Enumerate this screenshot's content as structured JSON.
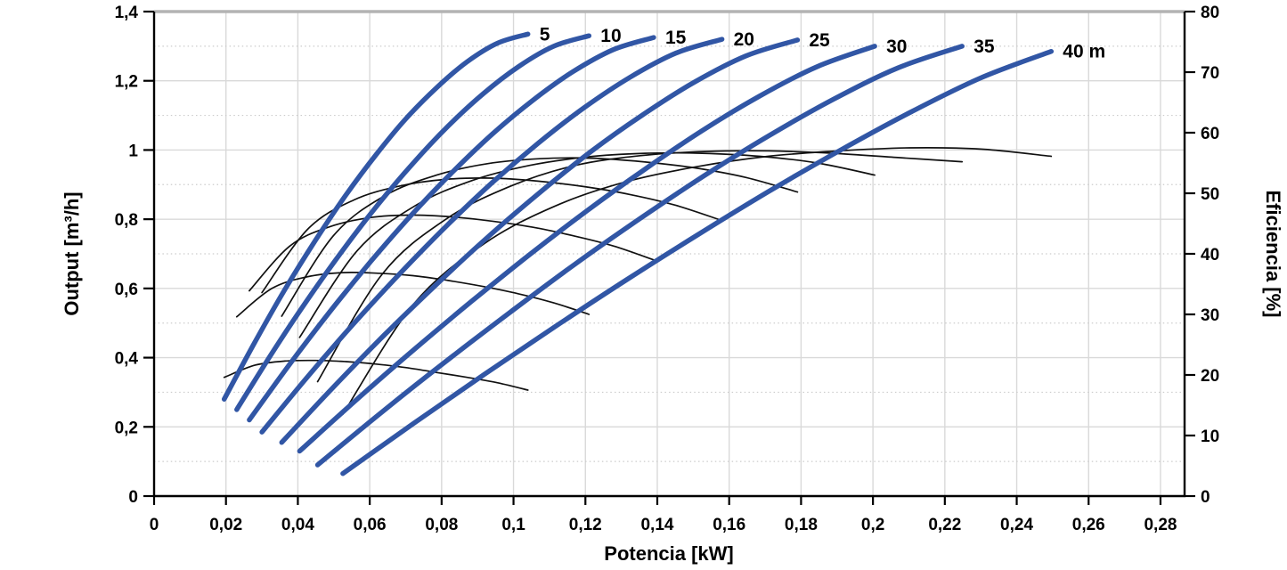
{
  "chart_data": {
    "type": "line",
    "title": "",
    "xlabel": "Potencia [kW]",
    "ylabel_left": "Output [m³/h]",
    "ylabel_right": "Eficiencia [%]",
    "xlim": [
      0,
      0.2867
    ],
    "ylim_left": [
      0,
      1.4
    ],
    "ylim_right": [
      0,
      80
    ],
    "grid": "on",
    "legend": "curve-end labels (head in m)",
    "pump_color": "#3156a5",
    "efficiency_color": "#111111",
    "x_ticks": [
      {
        "v": 0,
        "label": "0"
      },
      {
        "v": 0.02,
        "label": "0,02"
      },
      {
        "v": 0.04,
        "label": "0,04"
      },
      {
        "v": 0.06,
        "label": "0,06"
      },
      {
        "v": 0.08,
        "label": "0,08"
      },
      {
        "v": 0.1,
        "label": "0,1"
      },
      {
        "v": 0.12,
        "label": "0,12"
      },
      {
        "v": 0.14,
        "label": "0,14"
      },
      {
        "v": 0.16,
        "label": "0,16"
      },
      {
        "v": 0.18,
        "label": "0,18"
      },
      {
        "v": 0.2,
        "label": "0,2"
      },
      {
        "v": 0.22,
        "label": "0,22"
      },
      {
        "v": 0.24,
        "label": "0,24"
      },
      {
        "v": 0.26,
        "label": "0,26"
      },
      {
        "v": 0.28,
        "label": "0,28"
      }
    ],
    "y_left_ticks": [
      {
        "v": 0,
        "label": "0"
      },
      {
        "v": 0.2,
        "label": "0,2"
      },
      {
        "v": 0.4,
        "label": "0,4"
      },
      {
        "v": 0.6,
        "label": "0,6"
      },
      {
        "v": 0.8,
        "label": "0,8"
      },
      {
        "v": 1,
        "label": "1"
      },
      {
        "v": 1.2,
        "label": "1,2"
      },
      {
        "v": 1.4,
        "label": "1,4"
      }
    ],
    "y_left_minor": [
      0.1,
      0.3,
      0.5,
      0.7,
      0.9,
      1.1,
      1.3
    ],
    "y_right_ticks": [
      {
        "v": 0,
        "label": "0"
      },
      {
        "v": 10,
        "label": "10"
      },
      {
        "v": 20,
        "label": "20"
      },
      {
        "v": 30,
        "label": "30"
      },
      {
        "v": 40,
        "label": "40"
      },
      {
        "v": 50,
        "label": "50"
      },
      {
        "v": 60,
        "label": "60"
      },
      {
        "v": 70,
        "label": "70"
      },
      {
        "v": 80,
        "label": "80"
      }
    ],
    "series": [
      {
        "name": "head-5m",
        "label": "5",
        "head_m": 5,
        "axis": "left",
        "points": [
          [
            0.0195,
            0.28
          ],
          [
            0.028,
            0.444
          ],
          [
            0.0364,
            0.597
          ],
          [
            0.0449,
            0.739
          ],
          [
            0.0533,
            0.869
          ],
          [
            0.0618,
            0.987
          ],
          [
            0.0702,
            1.092
          ],
          [
            0.0787,
            1.181
          ],
          [
            0.0871,
            1.255
          ],
          [
            0.0956,
            1.309
          ],
          [
            0.104,
            1.335
          ]
        ]
      },
      {
        "name": "head-10m",
        "label": "10",
        "head_m": 10,
        "axis": "left",
        "points": [
          [
            0.023,
            0.25
          ],
          [
            0.0328,
            0.413
          ],
          [
            0.0426,
            0.566
          ],
          [
            0.0524,
            0.709
          ],
          [
            0.0622,
            0.841
          ],
          [
            0.072,
            0.961
          ],
          [
            0.0818,
            1.069
          ],
          [
            0.0916,
            1.163
          ],
          [
            0.1014,
            1.241
          ],
          [
            0.1112,
            1.3
          ],
          [
            0.121,
            1.33
          ]
        ]
      },
      {
        "name": "head-15m",
        "label": "15",
        "head_m": 15,
        "axis": "left",
        "points": [
          [
            0.0265,
            0.22
          ],
          [
            0.0378,
            0.382
          ],
          [
            0.049,
            0.534
          ],
          [
            0.0603,
            0.678
          ],
          [
            0.0715,
            0.811
          ],
          [
            0.0828,
            0.934
          ],
          [
            0.094,
            1.045
          ],
          [
            0.1053,
            1.143
          ],
          [
            0.1165,
            1.226
          ],
          [
            0.1278,
            1.29
          ],
          [
            0.139,
            1.325
          ]
        ]
      },
      {
        "name": "head-20m",
        "label": "20",
        "head_m": 20,
        "axis": "left",
        "points": [
          [
            0.03,
            0.185
          ],
          [
            0.0428,
            0.346
          ],
          [
            0.0556,
            0.499
          ],
          [
            0.0684,
            0.643
          ],
          [
            0.0812,
            0.779
          ],
          [
            0.094,
            0.905
          ],
          [
            0.1068,
            1.019
          ],
          [
            0.1196,
            1.122
          ],
          [
            0.1324,
            1.21
          ],
          [
            0.1452,
            1.28
          ],
          [
            0.158,
            1.32
          ]
        ]
      },
      {
        "name": "head-25m",
        "label": "25",
        "head_m": 25,
        "axis": "left",
        "points": [
          [
            0.0355,
            0.155
          ],
          [
            0.0499,
            0.315
          ],
          [
            0.0642,
            0.467
          ],
          [
            0.0786,
            0.612
          ],
          [
            0.0929,
            0.749
          ],
          [
            0.1073,
            0.877
          ],
          [
            0.1216,
            0.996
          ],
          [
            0.136,
            1.102
          ],
          [
            0.1503,
            1.196
          ],
          [
            0.1647,
            1.272
          ],
          [
            0.179,
            1.318
          ]
        ]
      },
      {
        "name": "head-30m",
        "label": "30",
        "head_m": 30,
        "axis": "left",
        "points": [
          [
            0.0405,
            0.13
          ],
          [
            0.0565,
            0.28
          ],
          [
            0.0725,
            0.425
          ],
          [
            0.0885,
            0.564
          ],
          [
            0.1045,
            0.698
          ],
          [
            0.1205,
            0.825
          ],
          [
            0.1365,
            0.944
          ],
          [
            0.1525,
            1.056
          ],
          [
            0.1685,
            1.156
          ],
          [
            0.1845,
            1.241
          ],
          [
            0.2005,
            1.3
          ]
        ]
      },
      {
        "name": "head-35m",
        "label": "35",
        "head_m": 35,
        "axis": "left",
        "points": [
          [
            0.0455,
            0.09
          ],
          [
            0.0634,
            0.243
          ],
          [
            0.0814,
            0.391
          ],
          [
            0.0993,
            0.533
          ],
          [
            0.1172,
            0.671
          ],
          [
            0.1352,
            0.802
          ],
          [
            0.1531,
            0.926
          ],
          [
            0.171,
            1.041
          ],
          [
            0.1889,
            1.146
          ],
          [
            0.2069,
            1.237
          ],
          [
            0.2248,
            1.3
          ]
        ]
      },
      {
        "name": "head-40m",
        "label": "40 m",
        "head_m": 40,
        "axis": "left",
        "points": [
          [
            0.0525,
            0.065
          ],
          [
            0.0722,
            0.21
          ],
          [
            0.0919,
            0.352
          ],
          [
            0.1116,
            0.49
          ],
          [
            0.1313,
            0.624
          ],
          [
            0.1511,
            0.754
          ],
          [
            0.1708,
            0.879
          ],
          [
            0.1905,
            0.997
          ],
          [
            0.2102,
            1.108
          ],
          [
            0.2299,
            1.208
          ],
          [
            0.2496,
            1.285
          ]
        ]
      }
    ],
    "efficiency_series": [
      {
        "name": "eff-5m",
        "head_m": 5,
        "axis": "right",
        "points": [
          [
            0.0195,
            19.6
          ],
          [
            0.028,
            21.6
          ],
          [
            0.0364,
            22.3
          ],
          [
            0.0449,
            22.4
          ],
          [
            0.0533,
            22.2
          ],
          [
            0.0618,
            21.8
          ],
          [
            0.0702,
            21.2
          ],
          [
            0.0787,
            20.4
          ],
          [
            0.0871,
            19.6
          ],
          [
            0.0956,
            18.7
          ],
          [
            0.104,
            17.5
          ]
        ]
      },
      {
        "name": "eff-10m",
        "head_m": 10,
        "axis": "right",
        "points": [
          [
            0.023,
            29.6
          ],
          [
            0.0328,
            34.3
          ],
          [
            0.0426,
            36.2
          ],
          [
            0.0524,
            36.9
          ],
          [
            0.0622,
            36.8
          ],
          [
            0.072,
            36.4
          ],
          [
            0.0818,
            35.6
          ],
          [
            0.0916,
            34.6
          ],
          [
            0.1014,
            33.4
          ],
          [
            0.1112,
            31.9
          ],
          [
            0.121,
            30
          ]
        ]
      },
      {
        "name": "eff-15m",
        "head_m": 15,
        "axis": "right",
        "points": [
          [
            0.0265,
            33.9
          ],
          [
            0.0378,
            41.3
          ],
          [
            0.049,
            44.5
          ],
          [
            0.0603,
            46
          ],
          [
            0.0715,
            46.4
          ],
          [
            0.0828,
            46.1
          ],
          [
            0.094,
            45.4
          ],
          [
            0.1053,
            44.4
          ],
          [
            0.1165,
            43
          ],
          [
            0.1278,
            41.3
          ],
          [
            0.139,
            39
          ]
        ]
      },
      {
        "name": "eff-20m",
        "head_m": 20,
        "axis": "right",
        "points": [
          [
            0.03,
            33.6
          ],
          [
            0.0428,
            44.1
          ],
          [
            0.0556,
            48.9
          ],
          [
            0.0684,
            51.2
          ],
          [
            0.0812,
            52.3
          ],
          [
            0.094,
            52.5
          ],
          [
            0.1068,
            52
          ],
          [
            0.1196,
            51.1
          ],
          [
            0.1324,
            49.8
          ],
          [
            0.1452,
            48
          ],
          [
            0.158,
            45.5
          ]
        ]
      },
      {
        "name": "eff-25m",
        "head_m": 25,
        "axis": "right",
        "points": [
          [
            0.0355,
            29.7
          ],
          [
            0.0499,
            43
          ],
          [
            0.0642,
            49.6
          ],
          [
            0.0786,
            53
          ],
          [
            0.0929,
            54.9
          ],
          [
            0.1073,
            55.7
          ],
          [
            0.1216,
            55.8
          ],
          [
            0.136,
            55.2
          ],
          [
            0.1503,
            54.2
          ],
          [
            0.1647,
            52.6
          ],
          [
            0.179,
            50.2
          ]
        ]
      },
      {
        "name": "eff-30m",
        "head_m": 30,
        "axis": "right",
        "points": [
          [
            0.0405,
            26.2
          ],
          [
            0.0565,
            40.5
          ],
          [
            0.0725,
            47.9
          ],
          [
            0.0885,
            52.1
          ],
          [
            0.1045,
            54.6
          ],
          [
            0.1205,
            56
          ],
          [
            0.1365,
            56.6
          ],
          [
            0.1525,
            56.6
          ],
          [
            0.1685,
            56.1
          ],
          [
            0.1845,
            55
          ],
          [
            0.2005,
            53
          ]
        ]
      },
      {
        "name": "eff-35m",
        "head_m": 35,
        "axis": "right",
        "points": [
          [
            0.0455,
            18.9
          ],
          [
            0.0634,
            36.6
          ],
          [
            0.0814,
            45.8
          ],
          [
            0.0993,
            51.2
          ],
          [
            0.1172,
            54.6
          ],
          [
            0.1352,
            56.2
          ],
          [
            0.1531,
            56.9
          ],
          [
            0.171,
            57
          ],
          [
            0.1889,
            56.6
          ],
          [
            0.2069,
            55.9
          ],
          [
            0.2248,
            55.2
          ]
        ]
      },
      {
        "name": "eff-40m",
        "head_m": 40,
        "axis": "right",
        "points": [
          [
            0.0525,
            13.5
          ],
          [
            0.0722,
            31.7
          ],
          [
            0.0919,
            41.7
          ],
          [
            0.1116,
            47.9
          ],
          [
            0.1313,
            51.9
          ],
          [
            0.1511,
            54.4
          ],
          [
            0.1708,
            56.1
          ],
          [
            0.1905,
            57
          ],
          [
            0.2102,
            57.5
          ],
          [
            0.2299,
            57.3
          ],
          [
            0.2496,
            56.1
          ]
        ]
      }
    ]
  }
}
